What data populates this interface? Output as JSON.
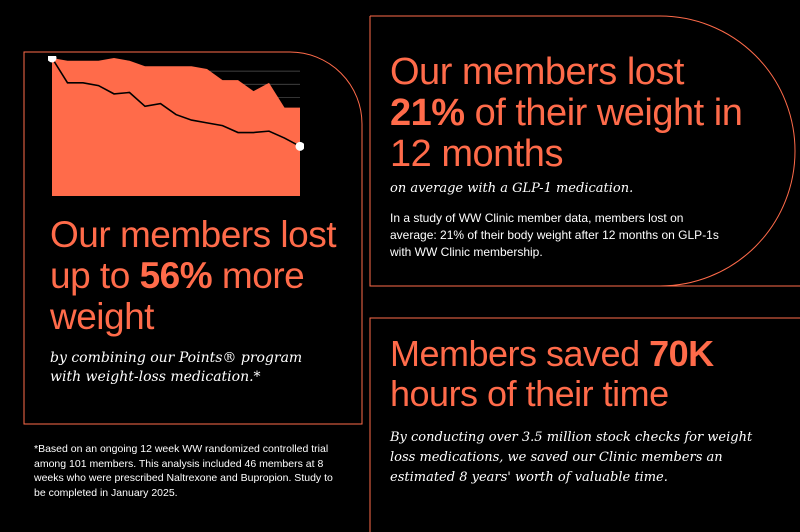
{
  "colors": {
    "accent": "#ff6b4a",
    "background": "#000000",
    "text": "#ffffff"
  },
  "left_panel": {
    "headline_prefix": "Our members lost up to ",
    "headline_highlight": "56%",
    "headline_suffix": " more weight",
    "subheading": "by combining our Points® program with weight-loss medication.*",
    "footnote": "*Based on an ongoing 12 week WW randomized controlled trial among 101 members. This analysis included 46 members at 8 weeks who were prescribed Naltrexone and Bupropion. Study to be completed in January 2025."
  },
  "right_top_panel": {
    "headline_prefix": "Our members lost ",
    "headline_highlight": "21%",
    "headline_suffix": " of their weight in 12 months",
    "subheading": "on average with a GLP-1 medication.",
    "body": "In a study of WW Clinic member data, members lost on average: 21% of their body weight after 12 months on GLP-1s with WW Clinic membership."
  },
  "right_bottom_panel": {
    "headline_prefix": "Members saved ",
    "headline_highlight": "70K",
    "headline_suffix": " hours of their time",
    "body": "By conducting over 3.5 million stock checks for weight loss medications, we saved our Clinic members an estimated 8 years' worth of valuable time."
  },
  "chart_data": {
    "type": "area",
    "series": [
      {
        "values": [
          100,
          98,
          98,
          98,
          100,
          98,
          94,
          94,
          94,
          94,
          92,
          84,
          84,
          76,
          82,
          64,
          64
        ]
      },
      {
        "values": [
          100,
          82,
          82,
          80,
          74,
          75,
          65,
          67,
          59,
          55,
          53,
          51,
          46,
          46,
          47,
          42,
          36
        ]
      }
    ],
    "ylim": [
      0,
      100
    ],
    "grid": true
  }
}
